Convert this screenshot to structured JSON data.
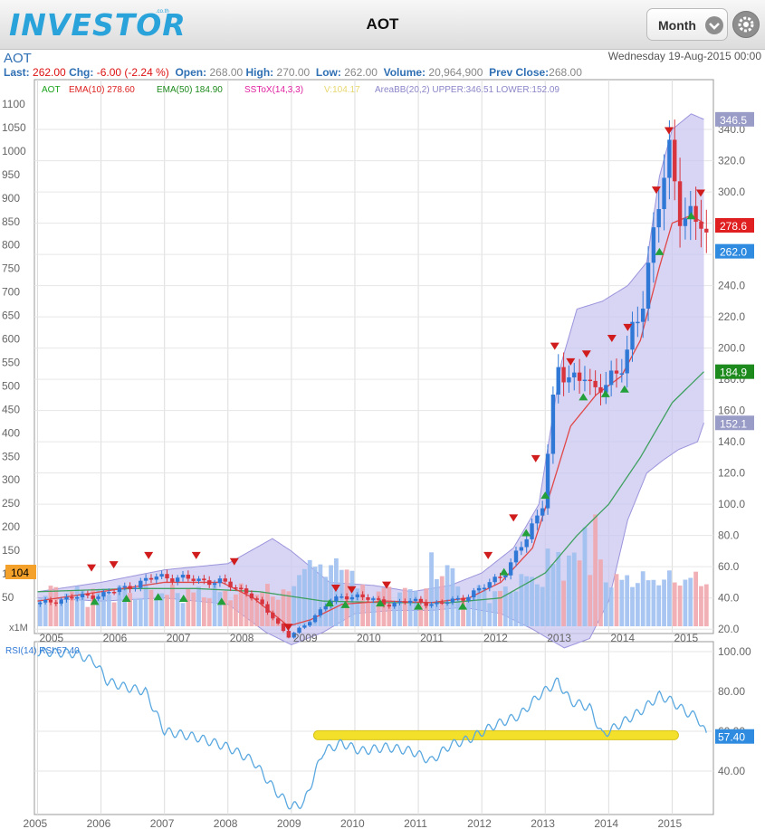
{
  "header": {
    "logo": "INVESTOR",
    "logo_sub": ".co.th",
    "title": "AOT",
    "period_label": "Month",
    "settings_icon": "gear-icon",
    "period_icon": "chevron-down-icon"
  },
  "info": {
    "symbol": "AOT",
    "date": "Wednesday 19-Aug-2015 00:00",
    "last_label": "Last:",
    "last": "262.00",
    "chg_label": "Chg:",
    "chg": "-6.00 (-2.24 %)",
    "open_label": "Open:",
    "open": "268.00",
    "high_label": "High:",
    "high": "270.00",
    "low_label": "Low:",
    "low": "262.00",
    "volume_label": "Volume:",
    "volume": "20,964,900",
    "prev_label": "Prev Close:",
    "prev": "268.00"
  },
  "legend": {
    "aot": "AOT",
    "ema10": "EMA(10) 278.60",
    "ema50": "EMA(50) 184.90",
    "sstox": "SSToX(14,3,3)",
    "v": "V:104.17",
    "bb": "AreaBB(20,2) UPPER:346.51 LOWER:152.09"
  },
  "colors": {
    "up": "#2f78d6",
    "down": "#d8343e",
    "ema10": "#e04848",
    "ema50": "#3fa060",
    "band_fill": "#c9c6f0",
    "band_line": "#9b95dc",
    "rsi": "#5aa8e0",
    "highlight": "#f2e02a"
  },
  "chart_data": [
    {
      "type": "candlestick",
      "title": "AOT",
      "x_ticks": [
        "2005",
        "2006",
        "2007",
        "2008",
        "2009",
        "2010",
        "2011",
        "2012",
        "2013",
        "2014",
        "2015"
      ],
      "price_axis_ticks": [
        "20.0",
        "40.0",
        "60.0",
        "80.0",
        "100.0",
        "120.0",
        "140.0",
        "160.0",
        "180.0",
        "200.0",
        "220.0",
        "240.0",
        "260.0",
        "280.0",
        "300.0",
        "320.0",
        "340.0"
      ],
      "price_range": [
        12,
        358
      ],
      "volume_axis_ticks": [
        "50",
        "100",
        "150",
        "200",
        "250",
        "300",
        "350",
        "400",
        "450",
        "500",
        "550",
        "600",
        "650",
        "700",
        "750",
        "800",
        "850",
        "900",
        "950",
        "1000",
        "1050",
        "1100"
      ],
      "volume_scale_label": "x1M",
      "last_badges": [
        {
          "label": "346.5",
          "value": 346.5,
          "color": "#9a9cc8"
        },
        {
          "label": "278.6",
          "value": 278.6,
          "color": "#e02020"
        },
        {
          "label": "262.0",
          "value": 262.0,
          "color": "#2f8be0"
        },
        {
          "label": "184.9",
          "value": 184.9,
          "color": "#1d8a1d"
        },
        {
          "label": "152.1",
          "value": 152.1,
          "color": "#9a9cc8"
        }
      ],
      "volume_badge": {
        "label": "104",
        "value": 104
      },
      "close_anchors": [
        [
          2005.0,
          36
        ],
        [
          2005.5,
          40
        ],
        [
          2006.0,
          42
        ],
        [
          2006.5,
          48
        ],
        [
          2006.9,
          54
        ],
        [
          2007.4,
          52
        ],
        [
          2007.9,
          50
        ],
        [
          2008.3,
          44
        ],
        [
          2008.7,
          28
        ],
        [
          2008.95,
          15
        ],
        [
          2009.2,
          22
        ],
        [
          2009.6,
          38
        ],
        [
          2010.0,
          42
        ],
        [
          2010.5,
          36
        ],
        [
          2010.9,
          38
        ],
        [
          2011.3,
          36
        ],
        [
          2011.7,
          40
        ],
        [
          2012.0,
          46
        ],
        [
          2012.4,
          58
        ],
        [
          2012.7,
          78
        ],
        [
          2012.95,
          100
        ],
        [
          2013.1,
          155
        ],
        [
          2013.2,
          185
        ],
        [
          2013.4,
          180
        ],
        [
          2013.6,
          188
        ],
        [
          2013.75,
          165
        ],
        [
          2013.9,
          178
        ],
        [
          2014.1,
          185
        ],
        [
          2014.3,
          195
        ],
        [
          2014.5,
          225
        ],
        [
          2014.65,
          260
        ],
        [
          2014.8,
          300
        ],
        [
          2014.95,
          318
        ],
        [
          2015.1,
          292
        ],
        [
          2015.3,
          285
        ],
        [
          2015.45,
          282
        ],
        [
          2015.55,
          262
        ]
      ],
      "ema10_anchors": [
        [
          2005.0,
          38
        ],
        [
          2006.0,
          44
        ],
        [
          2007.0,
          50
        ],
        [
          2007.9,
          50
        ],
        [
          2008.4,
          40
        ],
        [
          2008.95,
          22
        ],
        [
          2009.3,
          26
        ],
        [
          2009.8,
          36
        ],
        [
          2010.5,
          38
        ],
        [
          2011.2,
          37
        ],
        [
          2011.8,
          40
        ],
        [
          2012.3,
          50
        ],
        [
          2012.8,
          72
        ],
        [
          2013.1,
          110
        ],
        [
          2013.4,
          150
        ],
        [
          2013.8,
          170
        ],
        [
          2014.2,
          182
        ],
        [
          2014.5,
          205
        ],
        [
          2014.8,
          252
        ],
        [
          2015.0,
          280
        ],
        [
          2015.3,
          285
        ],
        [
          2015.5,
          280
        ]
      ],
      "ema50_anchors": [
        [
          2005.0,
          44
        ],
        [
          2006.5,
          46
        ],
        [
          2007.5,
          46
        ],
        [
          2008.5,
          44
        ],
        [
          2009.5,
          38
        ],
        [
          2010.5,
          37
        ],
        [
          2011.5,
          37
        ],
        [
          2012.3,
          40
        ],
        [
          2013.0,
          56
        ],
        [
          2013.5,
          80
        ],
        [
          2014.0,
          100
        ],
        [
          2014.5,
          130
        ],
        [
          2015.0,
          165
        ],
        [
          2015.5,
          184.9
        ]
      ],
      "bb_upper_anchors": [
        [
          2005.0,
          44
        ],
        [
          2006.0,
          50
        ],
        [
          2007.0,
          58
        ],
        [
          2008.0,
          62
        ],
        [
          2008.7,
          78
        ],
        [
          2009.0,
          70
        ],
        [
          2009.6,
          50
        ],
        [
          2010.3,
          48
        ],
        [
          2010.9,
          44
        ],
        [
          2011.5,
          48
        ],
        [
          2012.0,
          56
        ],
        [
          2012.5,
          72
        ],
        [
          2012.9,
          100
        ],
        [
          2013.25,
          190
        ],
        [
          2013.5,
          225
        ],
        [
          2013.9,
          230
        ],
        [
          2014.3,
          240
        ],
        [
          2014.6,
          255
        ],
        [
          2014.8,
          310
        ],
        [
          2015.0,
          340
        ],
        [
          2015.3,
          350
        ],
        [
          2015.5,
          346.5
        ]
      ],
      "bb_lower_anchors": [
        [
          2005.0,
          40
        ],
        [
          2006.0,
          38
        ],
        [
          2007.0,
          40
        ],
        [
          2008.0,
          36
        ],
        [
          2008.6,
          18
        ],
        [
          2009.0,
          10
        ],
        [
          2009.5,
          18
        ],
        [
          2010.0,
          30
        ],
        [
          2010.6,
          32
        ],
        [
          2011.2,
          32
        ],
        [
          2011.7,
          34
        ],
        [
          2012.3,
          30
        ],
        [
          2012.8,
          20
        ],
        [
          2013.3,
          8
        ],
        [
          2013.7,
          14
        ],
        [
          2014.0,
          38
        ],
        [
          2014.3,
          90
        ],
        [
          2014.6,
          120
        ],
        [
          2014.85,
          128
        ],
        [
          2015.1,
          135
        ],
        [
          2015.4,
          140
        ],
        [
          2015.5,
          152.1
        ]
      ],
      "down_markers": [
        [
          2005.85,
          58
        ],
        [
          2006.2,
          60
        ],
        [
          2006.75,
          66
        ],
        [
          2007.5,
          66
        ],
        [
          2008.1,
          62
        ],
        [
          2008.95,
          20
        ],
        [
          2009.7,
          45
        ],
        [
          2009.95,
          44
        ],
        [
          2010.5,
          47
        ],
        [
          2012.1,
          66
        ],
        [
          2012.5,
          90
        ],
        [
          2012.85,
          128
        ],
        [
          2013.15,
          200
        ],
        [
          2013.4,
          190
        ],
        [
          2013.65,
          195
        ],
        [
          2014.05,
          205
        ],
        [
          2014.3,
          212
        ],
        [
          2014.75,
          300
        ],
        [
          2014.95,
          338
        ],
        [
          2015.45,
          298
        ]
      ],
      "up_markers": [
        [
          2005.9,
          39
        ],
        [
          2006.4,
          41
        ],
        [
          2006.9,
          42
        ],
        [
          2007.3,
          41
        ],
        [
          2007.9,
          39
        ],
        [
          2009.6,
          38
        ],
        [
          2009.85,
          37
        ],
        [
          2010.4,
          38
        ],
        [
          2011.0,
          36
        ],
        [
          2011.7,
          36
        ],
        [
          2012.35,
          58
        ],
        [
          2012.7,
          83
        ],
        [
          2013.0,
          107
        ],
        [
          2013.6,
          170
        ],
        [
          2013.95,
          172
        ],
        [
          2014.25,
          175
        ],
        [
          2014.8,
          263
        ],
        [
          2015.3,
          286
        ]
      ]
    },
    {
      "type": "line",
      "title": "RSI(14) RSI:57.40",
      "y_ticks": [
        "40.00",
        "60.00",
        "80.00",
        "100.00"
      ],
      "y_range": [
        20,
        108
      ],
      "current": "57.40",
      "series_anchors": [
        [
          2005.0,
          100
        ],
        [
          2005.6,
          99
        ],
        [
          2005.9,
          95
        ],
        [
          2006.1,
          85
        ],
        [
          2006.4,
          82
        ],
        [
          2006.7,
          80
        ],
        [
          2007.0,
          60
        ],
        [
          2007.5,
          57
        ],
        [
          2008.0,
          52
        ],
        [
          2008.4,
          45
        ],
        [
          2008.75,
          30
        ],
        [
          2009.0,
          22
        ],
        [
          2009.2,
          24
        ],
        [
          2009.5,
          50
        ],
        [
          2009.8,
          54
        ],
        [
          2010.1,
          50
        ],
        [
          2010.5,
          52
        ],
        [
          2010.9,
          50
        ],
        [
          2011.2,
          45
        ],
        [
          2011.5,
          53
        ],
        [
          2011.8,
          56
        ],
        [
          2012.2,
          63
        ],
        [
          2012.6,
          68
        ],
        [
          2012.9,
          78
        ],
        [
          2013.2,
          85
        ],
        [
          2013.4,
          75
        ],
        [
          2013.7,
          72
        ],
        [
          2013.9,
          58
        ],
        [
          2014.2,
          64
        ],
        [
          2014.5,
          70
        ],
        [
          2014.8,
          78
        ],
        [
          2015.0,
          75
        ],
        [
          2015.2,
          70
        ],
        [
          2015.4,
          67
        ],
        [
          2015.55,
          57.4
        ]
      ],
      "highlight_band": {
        "from": 2009.35,
        "to": 2015.1,
        "level": 58
      }
    }
  ]
}
